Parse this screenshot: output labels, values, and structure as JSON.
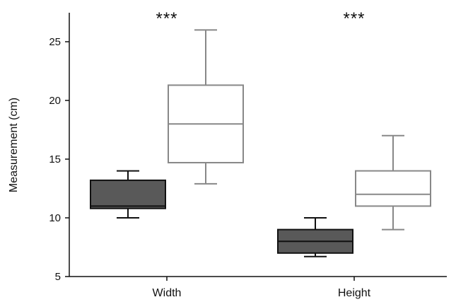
{
  "chart_data": {
    "type": "box",
    "title": "",
    "xlabel": "",
    "ylabel": "Measurement (cm)",
    "ylim": [
      5,
      27.5
    ],
    "yticks": [
      5,
      10,
      15,
      20,
      25
    ],
    "categories": [
      "Width",
      "Height"
    ],
    "grid": false,
    "legend": "none",
    "series": [
      {
        "fill": "#595959",
        "stroke": "#111111",
        "boxes": [
          {
            "category": "Width",
            "whisker_low": 10.0,
            "q1": 10.8,
            "median": 11.0,
            "q3": 13.2,
            "whisker_high": 14.0
          },
          {
            "category": "Height",
            "whisker_low": 6.7,
            "q1": 7.0,
            "median": 8.0,
            "q3": 9.0,
            "whisker_high": 10.0
          }
        ]
      },
      {
        "fill": "#ffffff",
        "stroke": "#888888",
        "boxes": [
          {
            "category": "Width",
            "whisker_low": 12.9,
            "q1": 14.7,
            "median": 18.0,
            "q3": 21.3,
            "whisker_high": 26.0
          },
          {
            "category": "Height",
            "whisker_low": 9.0,
            "q1": 11.0,
            "median": 12.0,
            "q3": 14.0,
            "whisker_high": 17.0
          }
        ]
      }
    ],
    "annotations": [
      {
        "category": "Width",
        "text": "***"
      },
      {
        "category": "Height",
        "text": "***"
      }
    ]
  }
}
